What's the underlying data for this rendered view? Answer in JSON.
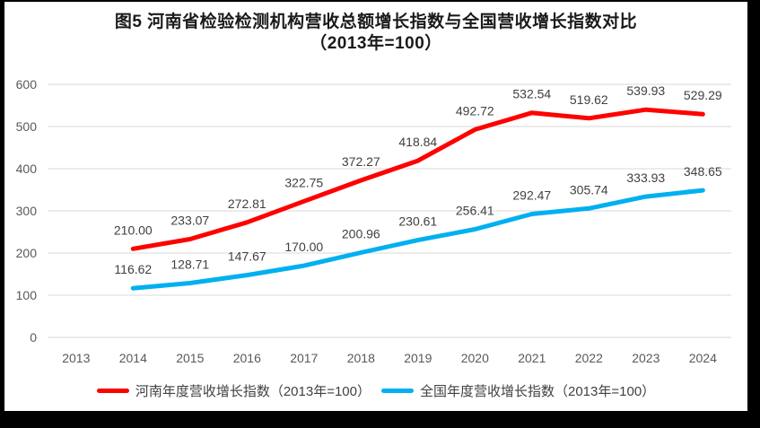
{
  "title": {
    "line1": "图5  河南省检验检测机构营收总额增长指数与全国营收增长指数对比",
    "line2": "（2013年=100）"
  },
  "colors": {
    "henan_red": "#FF0000",
    "national_blue": "#00B0F0",
    "gridline": "#D9D9D9",
    "axis_text": "#595959",
    "data_label_text": "#404040",
    "background": "#FFFFFF",
    "frame": "#000000"
  },
  "chart_data": {
    "type": "line",
    "title": "图5  河南省检验检测机构营收总额增长指数与全国营收增长指数对比（2013年=100）",
    "categories": [
      "2013",
      "2014",
      "2015",
      "2016",
      "2017",
      "2018",
      "2019",
      "2020",
      "2021",
      "2022",
      "2023",
      "2024"
    ],
    "series": [
      {
        "id": "henan-series",
        "name": "河南年度营收增长指数（2013年=100）",
        "color": "#FF0000",
        "values": [
          null,
          210.0,
          233.07,
          272.81,
          322.75,
          372.27,
          418.84,
          492.72,
          532.54,
          519.62,
          539.93,
          529.29
        ]
      },
      {
        "id": "national-series",
        "name": "全国年度营收增长指数（2013年=100）",
        "color": "#00B0F0",
        "values": [
          null,
          116.62,
          128.71,
          147.67,
          170.0,
          200.96,
          230.61,
          256.41,
          292.47,
          305.74,
          333.93,
          348.65
        ]
      }
    ],
    "xlabel": "",
    "ylabel": "",
    "ylim": [
      0,
      600
    ],
    "yticks": [
      0,
      100,
      200,
      300,
      400,
      500,
      600
    ],
    "grid": true,
    "data_labels": true,
    "data_label_decimals": 2,
    "legend_position": "bottom"
  }
}
